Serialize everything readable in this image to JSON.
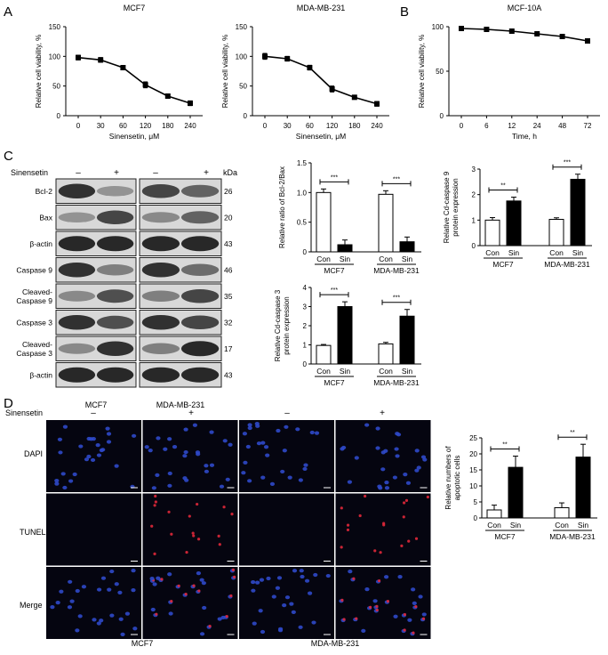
{
  "panel_labels": [
    "A",
    "B",
    "C",
    "D"
  ],
  "blot": {
    "treatment_label": "Sinensetin",
    "signs": [
      "–",
      "+",
      "–",
      "+"
    ],
    "kda_label": "kDa",
    "rows": [
      {
        "label": "Bcl-2",
        "kda": "26",
        "intensity": [
          0.85,
          0.35,
          0.75,
          0.6
        ]
      },
      {
        "label": "Bax",
        "kda": "20",
        "intensity": [
          0.35,
          0.75,
          0.4,
          0.6
        ]
      },
      {
        "label": "β-actin",
        "kda": "43",
        "intensity": [
          0.9,
          0.9,
          0.9,
          0.9
        ]
      },
      {
        "label": "Caspase 9",
        "kda": "46",
        "intensity": [
          0.85,
          0.45,
          0.85,
          0.55
        ]
      },
      {
        "label": "Cleaved-\nCaspase 9",
        "kda": "35",
        "intensity": [
          0.4,
          0.7,
          0.45,
          0.75
        ]
      },
      {
        "label": "Caspase 3",
        "kda": "32",
        "intensity": [
          0.85,
          0.7,
          0.85,
          0.75
        ]
      },
      {
        "label": "Cleaved-\nCaspase 3",
        "kda": "17",
        "intensity": [
          0.4,
          0.85,
          0.45,
          0.9
        ]
      },
      {
        "label": "β-actin",
        "kda": "43",
        "intensity": [
          0.9,
          0.9,
          0.9,
          0.9
        ]
      }
    ],
    "groups": [
      "MCF7",
      "MDA-MB-231"
    ]
  },
  "microscopy": {
    "treatment_label": "Sinensetin",
    "signs": [
      "–",
      "+",
      "–",
      "+"
    ],
    "row_labels": [
      "DAPI",
      "TUNEL",
      "Merge"
    ],
    "groups": [
      "MCF7",
      "MDA-MB-231"
    ]
  },
  "chart_data": [
    {
      "id": "a1",
      "type": "line",
      "title": "MCF7",
      "xlabel": "Sinensetin, μM",
      "ylabel": "Relative cell viability, %",
      "x": [
        "0",
        "30",
        "60",
        "120",
        "180",
        "240"
      ],
      "y": [
        98,
        94,
        81,
        52,
        33,
        21
      ],
      "err": [
        4,
        4,
        3,
        5,
        3,
        4
      ],
      "ylim": [
        0,
        150
      ],
      "yticks": [
        0,
        50,
        100,
        150
      ]
    },
    {
      "id": "a2",
      "type": "line",
      "title": "MDA-MB-231",
      "xlabel": "Sinensetin, μM",
      "ylabel": "Relative cell viability, %",
      "x": [
        "0",
        "30",
        "60",
        "120",
        "180",
        "240"
      ],
      "y": [
        100,
        96,
        81,
        45,
        31,
        20
      ],
      "err": [
        5,
        4,
        4,
        5,
        3,
        4
      ],
      "ylim": [
        0,
        150
      ],
      "yticks": [
        0,
        50,
        100,
        150
      ]
    },
    {
      "id": "b",
      "type": "line",
      "title": "MCF-10A",
      "xlabel": "Time, h",
      "ylabel": "Relative cell viability, %",
      "x": [
        "0",
        "6",
        "12",
        "24",
        "48",
        "72"
      ],
      "y": [
        98,
        97,
        95,
        92,
        89,
        84
      ],
      "err": [
        1,
        1,
        1,
        1,
        1,
        2
      ],
      "ylim": [
        0,
        100
      ],
      "yticks": [
        0,
        50,
        100
      ]
    },
    {
      "id": "c1",
      "type": "bar",
      "ylabel": "Relative ratio of Bcl-2/Bax",
      "ylim": [
        0,
        1.5
      ],
      "yticks": [
        "0",
        "0.5",
        "1.0",
        "1.5"
      ],
      "categories": [
        "Con",
        "Sin",
        "Con",
        "Sin"
      ],
      "groups": [
        "MCF7",
        "MDA-MB-231"
      ],
      "values": [
        1.0,
        0.12,
        0.97,
        0.17
      ],
      "err": [
        0.06,
        0.08,
        0.06,
        0.08
      ],
      "fills": [
        "#ffffff",
        "#000000",
        "#ffffff",
        "#000000"
      ],
      "significance": [
        "***",
        "***"
      ]
    },
    {
      "id": "c2",
      "type": "bar",
      "ylabel": "Relative Cd-caspase 9\nprotein expression",
      "ylim": [
        0,
        3
      ],
      "yticks": [
        "0",
        "1",
        "2",
        "3"
      ],
      "categories": [
        "Con",
        "Sin",
        "Con",
        "Sin"
      ],
      "groups": [
        "MCF7",
        "MDA-MB-231"
      ],
      "values": [
        1.0,
        1.75,
        1.03,
        2.6
      ],
      "err": [
        0.1,
        0.15,
        0.06,
        0.2
      ],
      "fills": [
        "#ffffff",
        "#000000",
        "#ffffff",
        "#000000"
      ],
      "significance": [
        "**",
        "***"
      ]
    },
    {
      "id": "c3",
      "type": "bar",
      "ylabel": "Relative Cd-caspase 3\nprotein expression",
      "ylim": [
        0,
        4
      ],
      "yticks": [
        "0",
        "1",
        "2",
        "3",
        "4"
      ],
      "categories": [
        "Con",
        "Sin",
        "Con",
        "Sin"
      ],
      "groups": [
        "MCF7",
        "MDA-MB-231"
      ],
      "values": [
        0.97,
        3.0,
        1.05,
        2.5
      ],
      "err": [
        0.05,
        0.25,
        0.08,
        0.35
      ],
      "fills": [
        "#ffffff",
        "#000000",
        "#ffffff",
        "#000000"
      ],
      "significance": [
        "***",
        "***"
      ]
    },
    {
      "id": "d",
      "type": "bar",
      "ylabel": "Relative numbers of\napoptotic cells",
      "ylim": [
        0,
        25
      ],
      "yticks": [
        "0",
        "5",
        "10",
        "15",
        "20",
        "25"
      ],
      "categories": [
        "Con",
        "Sin",
        "Con",
        "Sin"
      ],
      "groups": [
        "MCF7",
        "MDA-MB-231"
      ],
      "values": [
        2.5,
        15.8,
        3.2,
        19.0
      ],
      "err": [
        1.5,
        3.5,
        1.5,
        4.0
      ],
      "fills": [
        "#ffffff",
        "#000000",
        "#ffffff",
        "#000000"
      ],
      "significance": [
        "**",
        "**"
      ]
    }
  ]
}
